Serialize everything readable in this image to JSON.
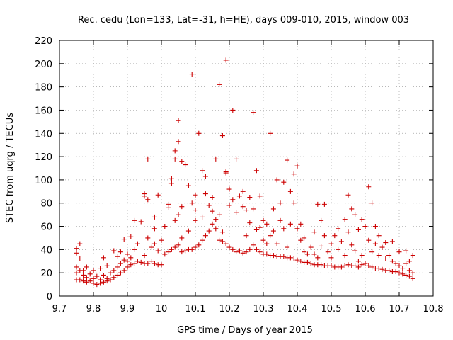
{
  "chart_data": {
    "type": "scatter",
    "title": "Rec. cedu (Lon=133, Lat=-31, h=HE), days 009-010, 2015, window 003",
    "xlabel": "GPS time / Days of year 2015",
    "ylabel": "STEC from uqrg / TECUs",
    "xlim": [
      9.7,
      10.8
    ],
    "ylim": [
      0,
      220
    ],
    "xticks": [
      "9.7",
      "9.8",
      "9.9",
      "10",
      "10.1",
      "10.2",
      "10.3",
      "10.4",
      "10.5",
      "10.6",
      "10.7",
      "10.8"
    ],
    "yticks": [
      "0",
      "20",
      "40",
      "60",
      "80",
      "100",
      "120",
      "140",
      "160",
      "180",
      "200",
      "220"
    ],
    "grid": true,
    "legend": "none",
    "marker": "plus",
    "color": "#cc0000",
    "points": [
      [
        9.75,
        14
      ],
      [
        9.75,
        20
      ],
      [
        9.75,
        25
      ],
      [
        9.75,
        37
      ],
      [
        9.75,
        41
      ],
      [
        9.76,
        14
      ],
      [
        9.76,
        22
      ],
      [
        9.76,
        45
      ],
      [
        9.76,
        32
      ],
      [
        9.77,
        13
      ],
      [
        9.77,
        18
      ],
      [
        9.77,
        22
      ],
      [
        9.78,
        12
      ],
      [
        9.78,
        16
      ],
      [
        9.78,
        25
      ],
      [
        9.79,
        13
      ],
      [
        9.79,
        19
      ],
      [
        9.8,
        11
      ],
      [
        9.8,
        15
      ],
      [
        9.8,
        22
      ],
      [
        9.81,
        10
      ],
      [
        9.81,
        17
      ],
      [
        9.82,
        11
      ],
      [
        9.82,
        14
      ],
      [
        9.82,
        24
      ],
      [
        9.83,
        12
      ],
      [
        9.83,
        18
      ],
      [
        9.83,
        33
      ],
      [
        9.84,
        13
      ],
      [
        9.84,
        15
      ],
      [
        9.84,
        26
      ],
      [
        9.85,
        14
      ],
      [
        9.85,
        20
      ],
      [
        9.86,
        16
      ],
      [
        9.86,
        22
      ],
      [
        9.86,
        39
      ],
      [
        9.87,
        18
      ],
      [
        9.87,
        25
      ],
      [
        9.87,
        34
      ],
      [
        9.88,
        20
      ],
      [
        9.88,
        28
      ],
      [
        9.88,
        38
      ],
      [
        9.89,
        22
      ],
      [
        9.89,
        31
      ],
      [
        9.89,
        49
      ],
      [
        9.9,
        25
      ],
      [
        9.9,
        30
      ],
      [
        9.9,
        36
      ],
      [
        9.91,
        27
      ],
      [
        9.91,
        33
      ],
      [
        9.91,
        51
      ],
      [
        9.92,
        28
      ],
      [
        9.92,
        40
      ],
      [
        9.92,
        65
      ],
      [
        9.93,
        30
      ],
      [
        9.93,
        45
      ],
      [
        9.94,
        29
      ],
      [
        9.94,
        64
      ],
      [
        9.95,
        28
      ],
      [
        9.95,
        35
      ],
      [
        9.95,
        86
      ],
      [
        9.95,
        88
      ],
      [
        9.96,
        28
      ],
      [
        9.96,
        50
      ],
      [
        9.96,
        83
      ],
      [
        9.96,
        118
      ],
      [
        9.97,
        30
      ],
      [
        9.97,
        42
      ],
      [
        9.98,
        28
      ],
      [
        9.98,
        58
      ],
      [
        9.98,
        68
      ],
      [
        9.98,
        45
      ],
      [
        9.99,
        27
      ],
      [
        9.99,
        39
      ],
      [
        9.99,
        87
      ],
      [
        10.0,
        27
      ],
      [
        10.0,
        48
      ],
      [
        10.01,
        36
      ],
      [
        10.01,
        60
      ],
      [
        10.02,
        38
      ],
      [
        10.02,
        76
      ],
      [
        10.02,
        79
      ],
      [
        10.03,
        40
      ],
      [
        10.03,
        97
      ],
      [
        10.03,
        101
      ],
      [
        10.04,
        42
      ],
      [
        10.04,
        65
      ],
      [
        10.04,
        118
      ],
      [
        10.04,
        125
      ],
      [
        10.05,
        44
      ],
      [
        10.05,
        70
      ],
      [
        10.05,
        133
      ],
      [
        10.05,
        151
      ],
      [
        10.06,
        38
      ],
      [
        10.06,
        50
      ],
      [
        10.06,
        77
      ],
      [
        10.06,
        116
      ],
      [
        10.07,
        39
      ],
      [
        10.07,
        113
      ],
      [
        10.08,
        40
      ],
      [
        10.08,
        56
      ],
      [
        10.08,
        95
      ],
      [
        10.09,
        40
      ],
      [
        10.09,
        80
      ],
      [
        10.09,
        191
      ],
      [
        10.1,
        42
      ],
      [
        10.1,
        65
      ],
      [
        10.1,
        74
      ],
      [
        10.1,
        87
      ],
      [
        10.11,
        44
      ],
      [
        10.11,
        140
      ],
      [
        10.12,
        48
      ],
      [
        10.12,
        68
      ],
      [
        10.12,
        108
      ],
      [
        10.13,
        52
      ],
      [
        10.13,
        88
      ],
      [
        10.13,
        103
      ],
      [
        10.14,
        56
      ],
      [
        10.14,
        78
      ],
      [
        10.15,
        62
      ],
      [
        10.15,
        73
      ],
      [
        10.15,
        85
      ],
      [
        10.16,
        58
      ],
      [
        10.16,
        66
      ],
      [
        10.16,
        118
      ],
      [
        10.17,
        48
      ],
      [
        10.17,
        70
      ],
      [
        10.17,
        182
      ],
      [
        10.18,
        47
      ],
      [
        10.18,
        55
      ],
      [
        10.18,
        138
      ],
      [
        10.19,
        45
      ],
      [
        10.19,
        106
      ],
      [
        10.19,
        107
      ],
      [
        10.19,
        203
      ],
      [
        10.2,
        42
      ],
      [
        10.2,
        78
      ],
      [
        10.2,
        92
      ],
      [
        10.21,
        40
      ],
      [
        10.21,
        83
      ],
      [
        10.21,
        160
      ],
      [
        10.22,
        38
      ],
      [
        10.22,
        72
      ],
      [
        10.22,
        118
      ],
      [
        10.23,
        39
      ],
      [
        10.23,
        86
      ],
      [
        10.24,
        37
      ],
      [
        10.24,
        77
      ],
      [
        10.24,
        90
      ],
      [
        10.25,
        38
      ],
      [
        10.25,
        52
      ],
      [
        10.25,
        74
      ],
      [
        10.26,
        40
      ],
      [
        10.26,
        63
      ],
      [
        10.26,
        85
      ],
      [
        10.27,
        44
      ],
      [
        10.27,
        75
      ],
      [
        10.27,
        158
      ],
      [
        10.28,
        40
      ],
      [
        10.28,
        57
      ],
      [
        10.28,
        108
      ],
      [
        10.29,
        38
      ],
      [
        10.29,
        59
      ],
      [
        10.29,
        86
      ],
      [
        10.3,
        36
      ],
      [
        10.3,
        48
      ],
      [
        10.3,
        65
      ],
      [
        10.31,
        36
      ],
      [
        10.31,
        45
      ],
      [
        10.31,
        62
      ],
      [
        10.32,
        35
      ],
      [
        10.32,
        52
      ],
      [
        10.32,
        140
      ],
      [
        10.33,
        35
      ],
      [
        10.33,
        56
      ],
      [
        10.33,
        75
      ],
      [
        10.34,
        34
      ],
      [
        10.34,
        45
      ],
      [
        10.34,
        100
      ],
      [
        10.35,
        34
      ],
      [
        10.35,
        65
      ],
      [
        10.35,
        80
      ],
      [
        10.36,
        34
      ],
      [
        10.36,
        58
      ],
      [
        10.36,
        98
      ],
      [
        10.37,
        33
      ],
      [
        10.37,
        42
      ],
      [
        10.37,
        117
      ],
      [
        10.38,
        33
      ],
      [
        10.38,
        62
      ],
      [
        10.38,
        90
      ],
      [
        10.39,
        32
      ],
      [
        10.39,
        80
      ],
      [
        10.39,
        105
      ],
      [
        10.4,
        31
      ],
      [
        10.4,
        58
      ],
      [
        10.4,
        112
      ],
      [
        10.41,
        30
      ],
      [
        10.41,
        48
      ],
      [
        10.41,
        62
      ],
      [
        10.42,
        29
      ],
      [
        10.42,
        38
      ],
      [
        10.42,
        50
      ],
      [
        10.43,
        29
      ],
      [
        10.43,
        36
      ],
      [
        10.44,
        28
      ],
      [
        10.44,
        42
      ],
      [
        10.45,
        27
      ],
      [
        10.45,
        36
      ],
      [
        10.45,
        55
      ],
      [
        10.46,
        27
      ],
      [
        10.46,
        33
      ],
      [
        10.46,
        79
      ],
      [
        10.47,
        27
      ],
      [
        10.47,
        43
      ],
      [
        10.47,
        65
      ],
      [
        10.48,
        26
      ],
      [
        10.48,
        52
      ],
      [
        10.48,
        79
      ],
      [
        10.49,
        26
      ],
      [
        10.49,
        38
      ],
      [
        10.5,
        26
      ],
      [
        10.5,
        33
      ],
      [
        10.5,
        45
      ],
      [
        10.51,
        25
      ],
      [
        10.51,
        52
      ],
      [
        10.52,
        25
      ],
      [
        10.52,
        40
      ],
      [
        10.52,
        58
      ],
      [
        10.53,
        25
      ],
      [
        10.53,
        47
      ],
      [
        10.54,
        26
      ],
      [
        10.54,
        35
      ],
      [
        10.54,
        66
      ],
      [
        10.55,
        27
      ],
      [
        10.55,
        55
      ],
      [
        10.55,
        87
      ],
      [
        10.56,
        26
      ],
      [
        10.56,
        44
      ],
      [
        10.56,
        75
      ],
      [
        10.57,
        26
      ],
      [
        10.57,
        39
      ],
      [
        10.57,
        70
      ],
      [
        10.58,
        25
      ],
      [
        10.58,
        30
      ],
      [
        10.58,
        57
      ],
      [
        10.59,
        27
      ],
      [
        10.59,
        35
      ],
      [
        10.59,
        66
      ],
      [
        10.6,
        28
      ],
      [
        10.6,
        60
      ],
      [
        10.61,
        26
      ],
      [
        10.61,
        48
      ],
      [
        10.61,
        94
      ],
      [
        10.62,
        25
      ],
      [
        10.62,
        38
      ],
      [
        10.62,
        80
      ],
      [
        10.63,
        24
      ],
      [
        10.63,
        45
      ],
      [
        10.63,
        60
      ],
      [
        10.64,
        24
      ],
      [
        10.64,
        35
      ],
      [
        10.64,
        52
      ],
      [
        10.65,
        23
      ],
      [
        10.65,
        42
      ],
      [
        10.66,
        22
      ],
      [
        10.66,
        32
      ],
      [
        10.66,
        46
      ],
      [
        10.67,
        22
      ],
      [
        10.67,
        35
      ],
      [
        10.68,
        21
      ],
      [
        10.68,
        30
      ],
      [
        10.68,
        47
      ],
      [
        10.69,
        21
      ],
      [
        10.69,
        28
      ],
      [
        10.7,
        20
      ],
      [
        10.7,
        26
      ],
      [
        10.7,
        38
      ],
      [
        10.71,
        19
      ],
      [
        10.71,
        24
      ],
      [
        10.72,
        18
      ],
      [
        10.72,
        28
      ],
      [
        10.72,
        39
      ],
      [
        10.73,
        17
      ],
      [
        10.73,
        22
      ],
      [
        10.73,
        30
      ],
      [
        10.74,
        15
      ],
      [
        10.74,
        20
      ],
      [
        10.74,
        35
      ]
    ]
  }
}
